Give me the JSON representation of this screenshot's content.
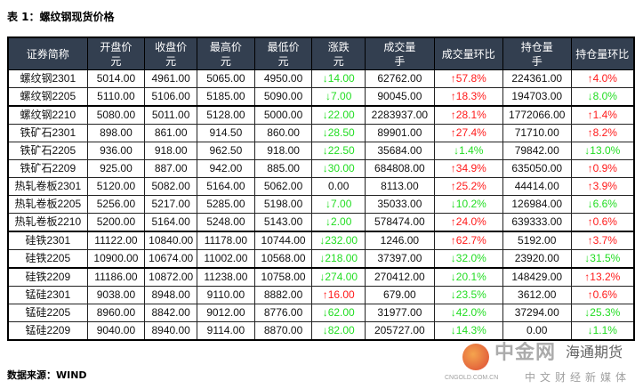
{
  "title": "表 1：螺纹钢现货价格",
  "source": "数据来源：WIND",
  "colors": {
    "header_bg": "#333f50",
    "up": "#ff1a1a",
    "down": "#22dd22"
  },
  "headers": [
    {
      "l1": "证券简称",
      "l2": ""
    },
    {
      "l1": "开盘价",
      "l2": "元"
    },
    {
      "l1": "收盘价",
      "l2": "元"
    },
    {
      "l1": "最高价",
      "l2": "元"
    },
    {
      "l1": "最低价",
      "l2": "元"
    },
    {
      "l1": "涨跌",
      "l2": "元"
    },
    {
      "l1": "成交量",
      "l2": "手"
    },
    {
      "l1": "成交量环比",
      "l2": ""
    },
    {
      "l1": "持仓量",
      "l2": "手"
    },
    {
      "l1": "持仓量环比",
      "l2": ""
    }
  ],
  "rows": [
    [
      "螺纹钢2301",
      "5014.00",
      "4961.00",
      "5065.00",
      "4950.00",
      "↓14.00",
      "62762.00",
      "↑57.8%",
      "224361.00",
      "↑4.0%"
    ],
    [
      "螺纹钢2205",
      "5110.00",
      "5106.00",
      "5185.00",
      "5090.00",
      "↓7.00",
      "90045.00",
      "↑18.3%",
      "194703.00",
      "↓8.0%"
    ],
    [
      "螺纹钢2210",
      "5080.00",
      "5011.00",
      "5128.00",
      "5000.00",
      "↓22.00",
      "2283937.00",
      "↑28.1%",
      "1772066.00",
      "↑1.4%"
    ],
    [
      "铁矿石2301",
      "898.00",
      "861.00",
      "914.50",
      "860.00",
      "↓28.50",
      "89901.00",
      "↑27.4%",
      "71710.00",
      "↑8.2%"
    ],
    [
      "铁矿石2205",
      "936.00",
      "918.00",
      "962.50",
      "918.00",
      "↓22.50",
      "35684.00",
      "↓1.4%",
      "79842.00",
      "↓13.0%"
    ],
    [
      "铁矿石2209",
      "925.00",
      "887.00",
      "942.00",
      "885.00",
      "↓30.00",
      "684808.00",
      "↑34.9%",
      "635050.00",
      "↑0.9%"
    ],
    [
      "热轧卷板2301",
      "5120.00",
      "5082.00",
      "5164.00",
      "5062.00",
      "0.00",
      "8113.00",
      "↑25.2%",
      "44414.00",
      "↑3.9%"
    ],
    [
      "热轧卷板2205",
      "5256.00",
      "5217.00",
      "5285.00",
      "5198.00",
      "↓7.00",
      "35033.00",
      "↓10.2%",
      "126984.00",
      "↓6.6%"
    ],
    [
      "热轧卷板2210",
      "5200.00",
      "5164.00",
      "5248.00",
      "5143.00",
      "↓2.00",
      "578474.00",
      "↑24.0%",
      "639333.00",
      "↑0.6%"
    ],
    [
      "硅铁2301",
      "11122.00",
      "10840.00",
      "11178.00",
      "10744.00",
      "↓232.00",
      "1246.00",
      "↑62.7%",
      "5192.00",
      "↑3.7%"
    ],
    [
      "硅铁2205",
      "10900.00",
      "10674.00",
      "11002.00",
      "10568.00",
      "↓218.00",
      "37397.00",
      "↓32.0%",
      "23920.00",
      "↓31.5%"
    ],
    [
      "硅铁2209",
      "11186.00",
      "10872.00",
      "11238.00",
      "10758.00",
      "↓274.00",
      "270412.00",
      "↓20.1%",
      "148429.00",
      "↑13.2%"
    ],
    [
      "锰硅2301",
      "9038.00",
      "8948.00",
      "9110.00",
      "8882.00",
      "↑16.00",
      "679.00",
      "↓23.5%",
      "3612.00",
      "↑0.6%"
    ],
    [
      "锰硅2205",
      "8960.00",
      "8842.00",
      "9012.00",
      "8776.00",
      "↓62.00",
      "31977.00",
      "↓42.0%",
      "37294.00",
      "↓25.3%"
    ],
    [
      "锰硅2209",
      "9040.00",
      "8940.00",
      "9114.00",
      "8870.00",
      "↓82.00",
      "205727.00",
      "↓14.3%",
      "0.00",
      "↓1.1%"
    ]
  ],
  "watermark": {
    "brand": "中金网",
    "tagline": "中文财经新媒体",
    "domain": "CNGOLD.COM.CN",
    "overlay": "海通期货"
  }
}
